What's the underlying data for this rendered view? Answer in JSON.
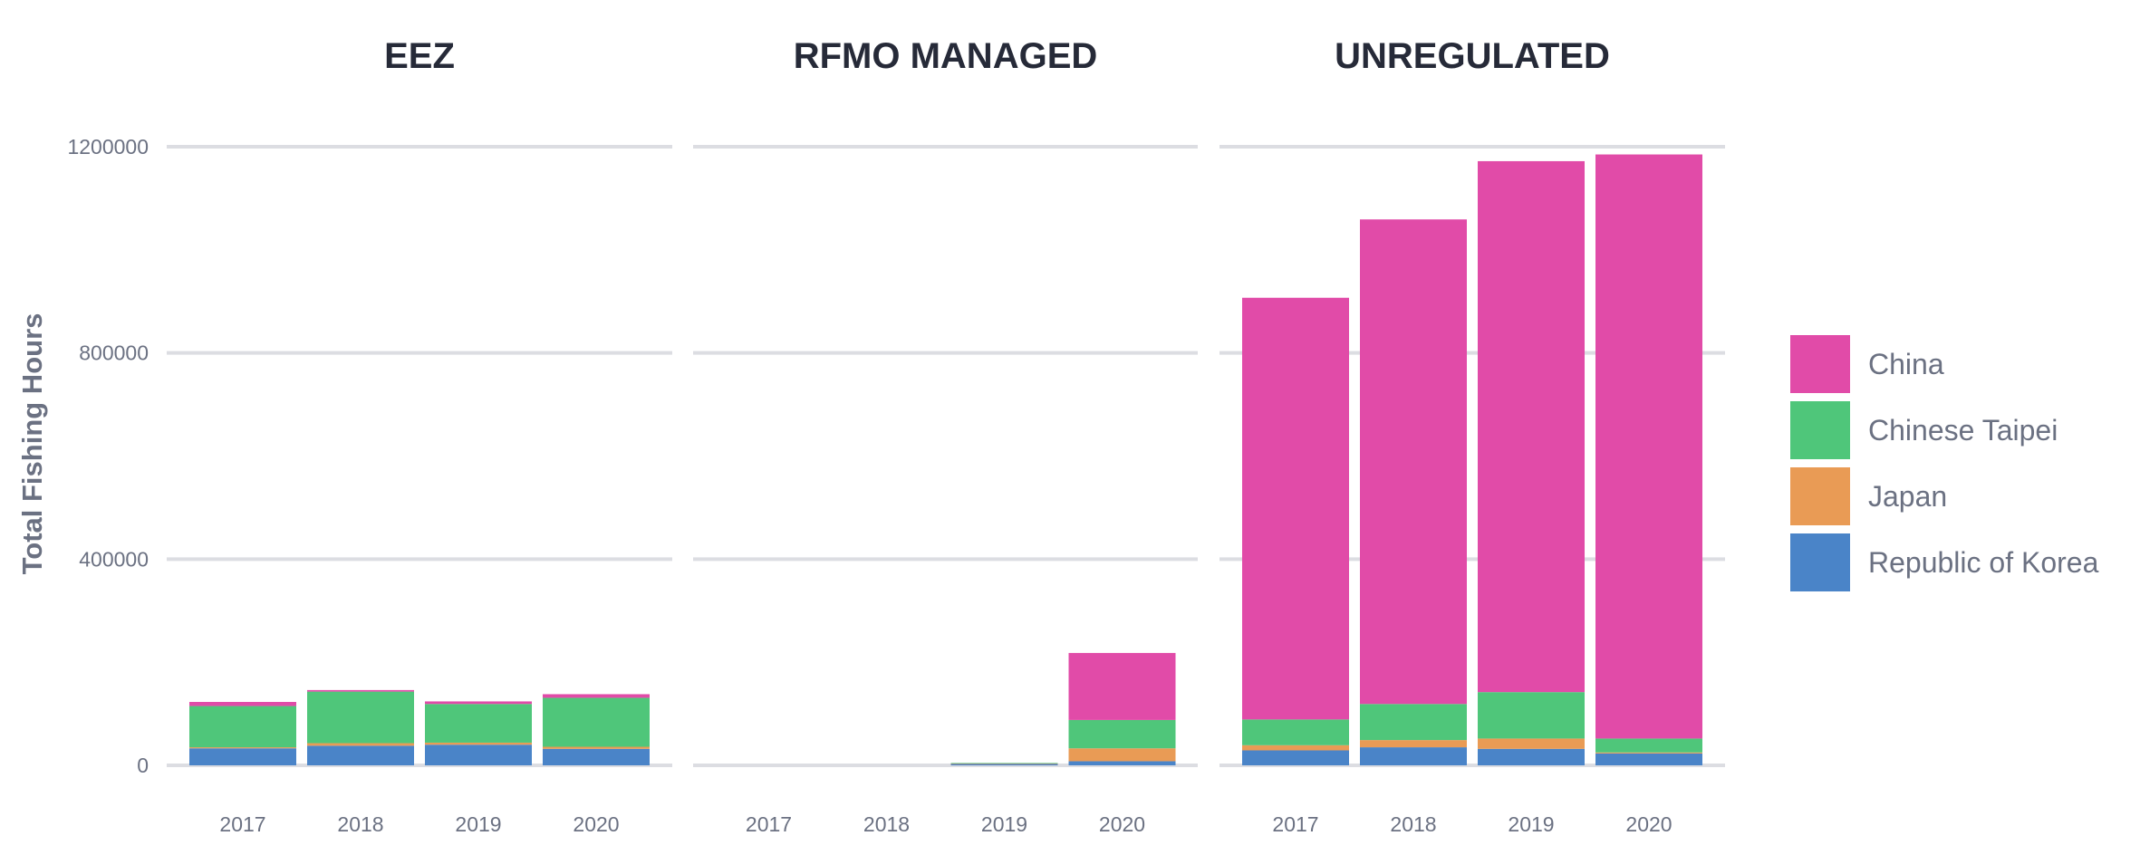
{
  "chart_data": {
    "type": "bar",
    "stacked": true,
    "ylabel": "Total Fishing Hours",
    "ylim": [
      0,
      1250000
    ],
    "yticks": [
      0,
      400000,
      800000,
      1200000
    ],
    "ytick_labels": [
      "0",
      "400000",
      "800000",
      "1200000"
    ],
    "grid": true,
    "legend_position": "right",
    "categories": [
      "2017",
      "2018",
      "2019",
      "2020"
    ],
    "series": [
      {
        "name": "China",
        "color": "#e14ba8"
      },
      {
        "name": "Chinese Taipei",
        "color": "#4fc67a"
      },
      {
        "name": "Japan",
        "color": "#e99b55"
      },
      {
        "name": "Republic of Korea",
        "color": "#4a84c8"
      }
    ],
    "legend_order": [
      "China",
      "Chinese Taipei",
      "Japan",
      "Republic of Korea"
    ],
    "panels": [
      {
        "title": "EEZ",
        "values": {
          "China": [
            8000,
            3000,
            5000,
            7000
          ],
          "Chinese Taipei": [
            80000,
            100000,
            75000,
            95000
          ],
          "Japan": [
            2000,
            5000,
            4000,
            4000
          ],
          "Republic of Korea": [
            33000,
            38000,
            40000,
            32000
          ]
        }
      },
      {
        "title": "RFMO MANAGED",
        "values": {
          "China": [
            0,
            0,
            0,
            130000
          ],
          "Chinese Taipei": [
            0,
            0,
            1000,
            55000
          ],
          "Japan": [
            0,
            0,
            500,
            25000
          ],
          "Republic of Korea": [
            0,
            0,
            3000,
            8000
          ]
        }
      },
      {
        "title": "UNREGULATED",
        "values": {
          "China": [
            818000,
            940000,
            1030000,
            1133000
          ],
          "Chinese Taipei": [
            50000,
            70000,
            90000,
            27000
          ],
          "Japan": [
            10000,
            14000,
            20000,
            2000
          ],
          "Republic of Korea": [
            29000,
            35000,
            32000,
            23000
          ]
        }
      }
    ]
  }
}
